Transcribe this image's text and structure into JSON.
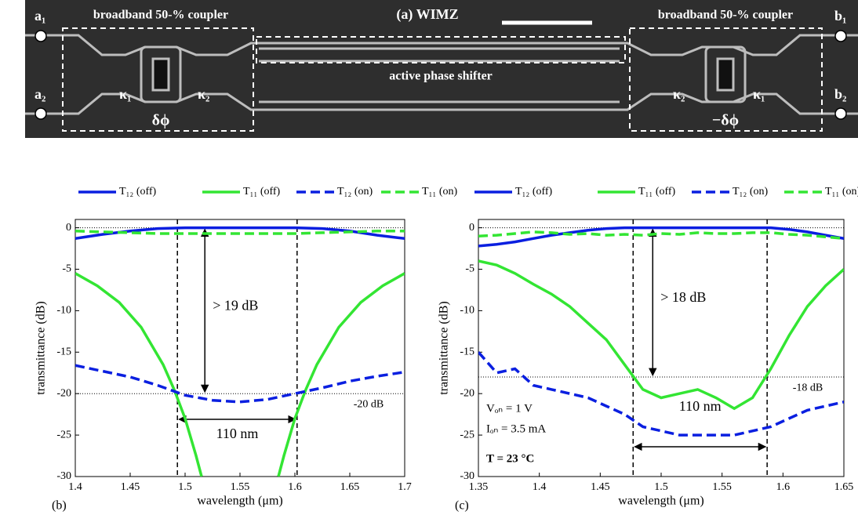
{
  "panel_a": {
    "title": "(a) WIMZ",
    "couplers": [
      "broadband 50-% coupler",
      "broadband 50-% coupler"
    ],
    "phase_shifter": "active phase shifter",
    "ports": [
      "a₁",
      "a₂",
      "b₁",
      "b₂"
    ],
    "kappas": [
      "κ₁",
      "κ₂",
      "κ₂",
      "κ₁"
    ],
    "phases": [
      "δϕ",
      "−δϕ"
    ]
  },
  "chart_data": [
    {
      "type": "line",
      "panel": "(b)",
      "xlabel": "wavelength (μm)",
      "ylabel": "transmittance (dB)",
      "xlim": [
        1.4,
        1.7
      ],
      "xticks": [
        1.4,
        1.45,
        1.5,
        1.55,
        1.6,
        1.65,
        1.7
      ],
      "ylim": [
        -30,
        1
      ],
      "yticks": [
        -30,
        -25,
        -20,
        -15,
        -10,
        -5,
        0
      ],
      "vlines": [
        1.493,
        1.602
      ],
      "hlines": [
        0,
        -20
      ],
      "annotations": {
        "gap": "> 19 dB",
        "width": "110 nm",
        "level": "-20 dB"
      },
      "series": [
        {
          "name": "T₁₂ (off)",
          "color": "#0a1fe0",
          "style": "solid",
          "x": [
            1.4,
            1.425,
            1.45,
            1.475,
            1.5,
            1.525,
            1.55,
            1.575,
            1.6,
            1.625,
            1.65,
            1.675,
            1.7
          ],
          "values": [
            -1.3,
            -0.8,
            -0.4,
            -0.1,
            0,
            0,
            0,
            0,
            0,
            -0.1,
            -0.4,
            -0.9,
            -1.3
          ]
        },
        {
          "name": "T₁₁ (off)",
          "color": "#33e533",
          "style": "solid",
          "x": [
            1.4,
            1.42,
            1.44,
            1.46,
            1.48,
            1.49,
            1.5,
            1.51,
            1.515,
            1.55,
            1.585,
            1.59,
            1.6,
            1.61,
            1.62,
            1.64,
            1.66,
            1.68,
            1.7
          ],
          "values": [
            -5.5,
            -7,
            -9,
            -12,
            -16.5,
            -19.5,
            -23,
            -27.5,
            -30,
            null,
            -30,
            -27.5,
            -23,
            -19.5,
            -16.5,
            -12,
            -9,
            -7,
            -5.5
          ]
        },
        {
          "name": "T₁₂ (on)",
          "color": "#0a1fe0",
          "style": "dashed",
          "x": [
            1.4,
            1.425,
            1.45,
            1.475,
            1.5,
            1.525,
            1.55,
            1.575,
            1.6,
            1.625,
            1.65,
            1.675,
            1.7
          ],
          "values": [
            -16.6,
            -17.3,
            -18,
            -19,
            -20.2,
            -20.8,
            -21,
            -20.7,
            -20,
            -19.3,
            -18.5,
            -17.9,
            -17.4
          ]
        },
        {
          "name": "T₁₁ (on)",
          "color": "#33e533",
          "style": "dashed",
          "x": [
            1.4,
            1.425,
            1.45,
            1.475,
            1.5,
            1.525,
            1.55,
            1.575,
            1.6,
            1.625,
            1.65,
            1.675,
            1.7
          ],
          "values": [
            -0.4,
            -0.5,
            -0.6,
            -0.7,
            -0.7,
            -0.7,
            -0.7,
            -0.7,
            -0.7,
            -0.6,
            -0.5,
            -0.4,
            -0.4
          ]
        }
      ]
    },
    {
      "type": "line",
      "panel": "(c)",
      "xlabel": "wavelength (μm)",
      "ylabel": "transmittance (dB)",
      "xlim": [
        1.35,
        1.65
      ],
      "xticks": [
        1.35,
        1.4,
        1.45,
        1.5,
        1.55,
        1.6,
        1.65
      ],
      "ylim": [
        -30,
        1
      ],
      "yticks": [
        -30,
        -25,
        -20,
        -15,
        -10,
        -5,
        0
      ],
      "vlines": [
        1.477,
        1.587
      ],
      "hlines": [
        0,
        -18
      ],
      "annotations": {
        "gap": "> 18 dB",
        "width": "110 nm",
        "level": "-18 dB"
      },
      "conditions": [
        "Vₒₙ = 1 V",
        "Iₒₙ = 3.5 mA",
        "T = 23 °C"
      ],
      "series": [
        {
          "name": "T₁₂ (off)",
          "color": "#0a1fe0",
          "style": "solid",
          "x": [
            1.35,
            1.365,
            1.38,
            1.395,
            1.41,
            1.425,
            1.44,
            1.455,
            1.47,
            1.485,
            1.5,
            1.515,
            1.53,
            1.545,
            1.56,
            1.575,
            1.59,
            1.605,
            1.62,
            1.635,
            1.65
          ],
          "values": [
            -2.2,
            -2,
            -1.7,
            -1.3,
            -0.9,
            -0.6,
            -0.3,
            -0.1,
            0,
            0,
            0,
            0,
            0,
            0,
            0,
            0,
            0,
            -0.2,
            -0.5,
            -0.9,
            -1.3
          ]
        },
        {
          "name": "T₁₁ (off)",
          "color": "#33e533",
          "style": "solid",
          "x": [
            1.35,
            1.365,
            1.38,
            1.395,
            1.41,
            1.425,
            1.44,
            1.455,
            1.47,
            1.485,
            1.5,
            1.515,
            1.53,
            1.545,
            1.56,
            1.575,
            1.59,
            1.605,
            1.62,
            1.635,
            1.65
          ],
          "values": [
            -4,
            -4.5,
            -5.5,
            -6.8,
            -8,
            -9.5,
            -11.5,
            -13.5,
            -16.5,
            -19.5,
            -20.5,
            -20,
            -19.5,
            -20.5,
            -21.8,
            -20.5,
            -17,
            -13,
            -9.5,
            -7,
            -5
          ]
        },
        {
          "name": "T₁₂ (on)",
          "color": "#0a1fe0",
          "style": "dashed",
          "x": [
            1.35,
            1.365,
            1.38,
            1.395,
            1.41,
            1.425,
            1.44,
            1.455,
            1.47,
            1.485,
            1.5,
            1.515,
            1.53,
            1.545,
            1.56,
            1.575,
            1.59,
            1.605,
            1.62,
            1.635,
            1.65
          ],
          "values": [
            -15,
            -17.5,
            -17,
            -19,
            -19.5,
            -20,
            -20.5,
            -21.5,
            -22.5,
            -24,
            -24.5,
            -25,
            -25,
            -25,
            -25,
            -24.5,
            -24,
            -23,
            -22,
            -21.5,
            -21
          ]
        },
        {
          "name": "T₁₁ (on)",
          "color": "#33e533",
          "style": "dashed",
          "x": [
            1.35,
            1.365,
            1.38,
            1.395,
            1.41,
            1.425,
            1.44,
            1.455,
            1.47,
            1.485,
            1.5,
            1.515,
            1.53,
            1.545,
            1.56,
            1.575,
            1.59,
            1.605,
            1.62,
            1.635,
            1.65
          ],
          "values": [
            -1,
            -0.9,
            -0.7,
            -0.5,
            -0.6,
            -0.8,
            -0.7,
            -0.9,
            -0.8,
            -0.9,
            -0.7,
            -0.8,
            -0.6,
            -0.7,
            -0.7,
            -0.6,
            -0.6,
            -0.8,
            -0.9,
            -1.1,
            -1.3
          ]
        }
      ]
    }
  ]
}
